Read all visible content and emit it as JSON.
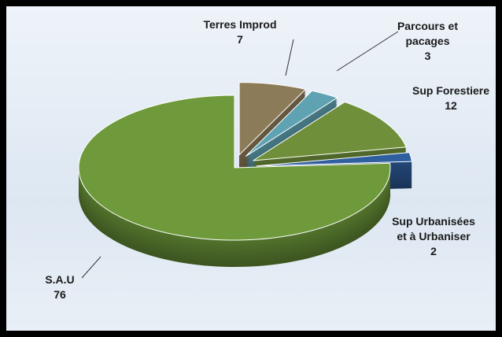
{
  "chart_data": {
    "type": "pie",
    "categories": [
      "Terres Improd",
      "Parcours et pacages",
      "Sup Forestiere",
      "Sup Urbanisées et à Urbaniser",
      "S.A.U"
    ],
    "values": [
      7,
      3,
      12,
      2,
      76
    ],
    "colors": [
      "#8c7b58",
      "#5fa3b3",
      "#6f8f3a",
      "#2f5f9f",
      "#6e9a3b"
    ]
  }
}
